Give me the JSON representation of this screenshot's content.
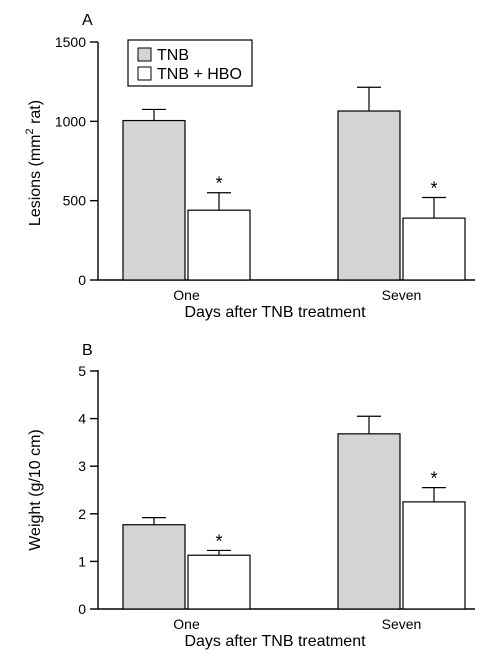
{
  "chart_data": [
    {
      "type": "bar",
      "panel_label": "A",
      "categories": [
        "One",
        "Seven"
      ],
      "series": [
        {
          "name": "TNB",
          "values": [
            1005,
            1065
          ],
          "errors": [
            70,
            150
          ],
          "color": "#d4d4d4"
        },
        {
          "name": "TNB + HBO",
          "values": [
            440,
            390
          ],
          "errors": [
            110,
            130
          ],
          "color": "#ffffff"
        }
      ],
      "significance": [
        [
          "",
          "*"
        ],
        [
          "",
          "*"
        ]
      ],
      "xlabel": "Days after TNB treatment",
      "ylabel_main": "Lesions (mm",
      "ylabel_sup": "2",
      "ylabel_tail": " rat)",
      "ylim": [
        0,
        1500
      ],
      "yticks": [
        "0",
        "500",
        "1000",
        "1500"
      ],
      "legend": {
        "placement": "top-left",
        "entries": [
          "TNB",
          "TNB + HBO"
        ]
      },
      "grid": false
    },
    {
      "type": "bar",
      "panel_label": "B",
      "categories": [
        "One",
        "Seven"
      ],
      "series": [
        {
          "name": "TNB",
          "values": [
            1.77,
            3.68
          ],
          "errors": [
            0.15,
            0.37
          ],
          "color": "#d4d4d4"
        },
        {
          "name": "TNB + HBO",
          "values": [
            1.13,
            2.25
          ],
          "errors": [
            0.1,
            0.3
          ],
          "color": "#ffffff"
        }
      ],
      "significance": [
        [
          "",
          "*"
        ],
        [
          "",
          "*"
        ]
      ],
      "xlabel": "Days after TNB treatment",
      "ylabel": "Weight (g/10 cm)",
      "ylim": [
        0,
        5
      ],
      "yticks": [
        "0",
        "1",
        "2",
        "3",
        "4",
        "5"
      ],
      "grid": false
    }
  ]
}
